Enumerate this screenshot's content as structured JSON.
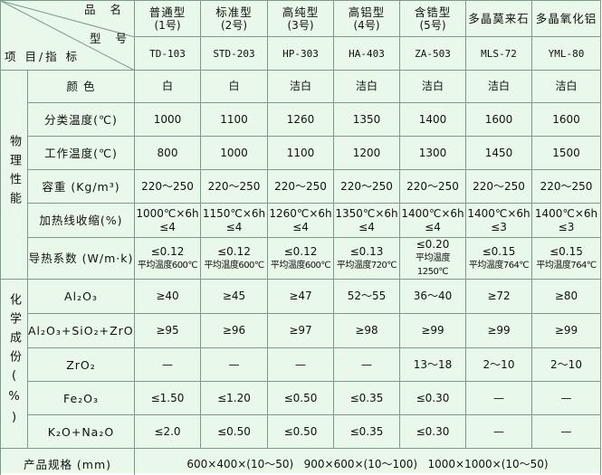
{
  "header": {
    "corner": {
      "name": "品 名",
      "model": "型 号",
      "item": "项 目/指 标"
    },
    "columns": [
      {
        "name": "普通型",
        "number": "(1号)",
        "model": "TD-103"
      },
      {
        "name": "标准型",
        "number": "(2号)",
        "model": "STD-203"
      },
      {
        "name": "高纯型",
        "number": "(3号)",
        "model": "HP-303"
      },
      {
        "name": "高铝型",
        "number": "(4号)",
        "model": "HA-403"
      },
      {
        "name": "含锆型",
        "number": "(5号)",
        "model": "ZA-503"
      },
      {
        "name": "多晶莫来石",
        "model": "MLS-72"
      },
      {
        "name": "多晶氧化铝",
        "model": "YML-80"
      }
    ]
  },
  "groups": [
    {
      "label": "物理性能",
      "rows": [
        {
          "label": "颜 色",
          "cells": [
            "白",
            "白",
            "洁白",
            "洁白",
            "洁白",
            "洁白",
            "洁白"
          ]
        },
        {
          "label": "分类温度(℃)",
          "cells": [
            "1000",
            "1100",
            "1260",
            "1350",
            "1400",
            "1600",
            "1600"
          ]
        },
        {
          "label": "工作温度(℃)",
          "cells": [
            "800",
            "1000",
            "1100",
            "1200",
            "1300",
            "1450",
            "1500"
          ]
        },
        {
          "label": "容重 (Kg/m³)",
          "cells": [
            "220～250",
            "220～250",
            "220～250",
            "220～250",
            "220～250",
            "220～250",
            "220～250"
          ]
        },
        {
          "label": "加热线收缩(%)",
          "cells": [
            [
              "1000℃×6h",
              "≤4"
            ],
            [
              "1150℃×6h",
              "≤4"
            ],
            [
              "1260℃×6h",
              "≤4"
            ],
            [
              "1350℃×6h",
              "≤4"
            ],
            [
              "1400℃×6h",
              "≤4"
            ],
            [
              "1400℃×6h",
              "≤3"
            ],
            [
              "1400℃×6h",
              "≤3"
            ]
          ]
        },
        {
          "label": "导热系数 (W/m·k)",
          "cells": [
            [
              "≤0.12",
              "平均温度600℃"
            ],
            [
              "≤0.12",
              "平均温度600℃"
            ],
            [
              "≤0.12",
              "平均温度600℃"
            ],
            [
              "≤0.13",
              "平均温度720℃"
            ],
            [
              "≤0.20",
              "平均温度1250℃"
            ],
            [
              "≤0.15",
              "平均温度764℃"
            ],
            [
              "≤0.15",
              "平均温度764℃"
            ]
          ]
        }
      ]
    },
    {
      "label": "化学成份(%)",
      "rows": [
        {
          "label": "Al₂O₃",
          "cells": [
            "≥40",
            "≥45",
            "≥47",
            "52～55",
            "36～40",
            "≥72",
            "≥80"
          ]
        },
        {
          "label": "Al₂O₃+SiO₂+ZrO₂",
          "cells": [
            "≥95",
            "≥96",
            "≥97",
            "≥98",
            "≥99",
            "≥99",
            "≥99"
          ]
        },
        {
          "label": "ZrO₂",
          "cells": [
            "—",
            "—",
            "—",
            "—",
            "13～18",
            "2～10",
            "2～10"
          ]
        },
        {
          "label": "Fe₂O₃",
          "cells": [
            "≤1.50",
            "≤1.20",
            "≤0.50",
            "≤0.35",
            "≤0.30",
            "—",
            "—"
          ]
        },
        {
          "label": "K₂O+Na₂O",
          "cells": [
            "≤2.0",
            "≤0.50",
            "≤0.50",
            "≤0.35",
            "≤0.30",
            "—",
            "—"
          ]
        }
      ]
    }
  ],
  "spec": {
    "label": "产品规格 (mm)",
    "value": "600×400×(10～50)   900×600×(10～100)   1000×1000×(10～50)"
  }
}
